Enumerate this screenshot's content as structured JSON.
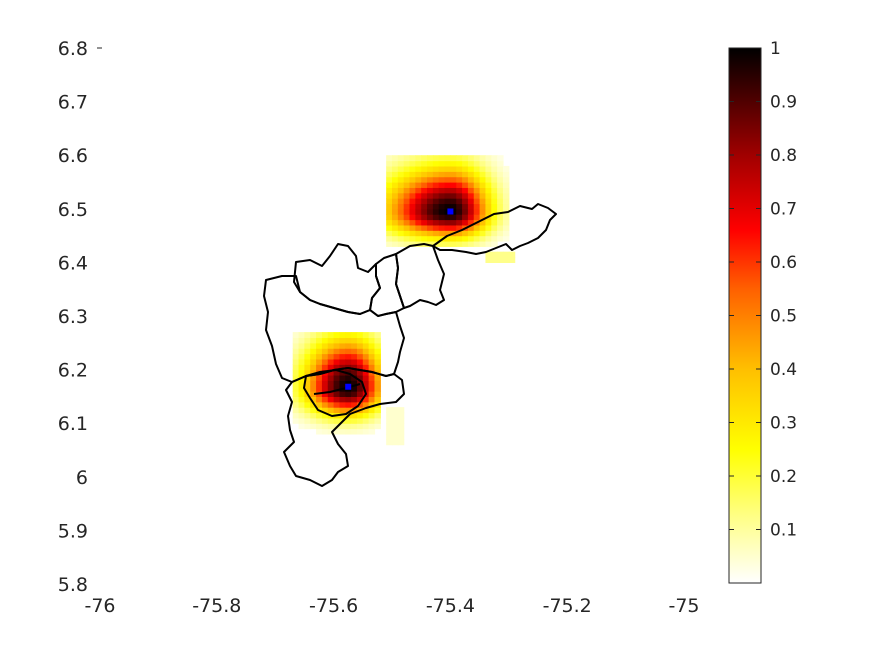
{
  "chart_data": {
    "type": "heatmap",
    "title": "",
    "xlabel": "",
    "ylabel": "",
    "xlim": [
      -76,
      -75
    ],
    "ylim": [
      5.8,
      6.8
    ],
    "xticks": [
      -76,
      -75.8,
      -75.6,
      -75.4,
      -75.2,
      -75
    ],
    "xtick_labels": [
      "-76",
      "-75.8",
      "-75.6",
      "-75.4",
      "-75.2",
      "-75"
    ],
    "yticks": [
      5.8,
      5.9,
      6.0,
      6.1,
      6.2,
      6.3,
      6.4,
      6.5,
      6.6,
      6.7,
      6.8
    ],
    "ytick_labels": [
      "5.8",
      "5.9",
      "6",
      "6.1",
      "6.2",
      "6.3",
      "6.4",
      "6.5",
      "6.6",
      "6.7",
      "6.8"
    ],
    "grid": false,
    "colormap": "hot (reversed)",
    "colorbar": {
      "position": "right",
      "range": [
        0,
        1
      ],
      "ticks": [
        0.1,
        0.2,
        0.3,
        0.4,
        0.5,
        0.6,
        0.7,
        0.8,
        0.9,
        1
      ],
      "tick_labels": [
        "0.1",
        "0.2",
        "0.3",
        "0.4",
        "0.5",
        "0.6",
        "0.7",
        "0.8",
        "0.9",
        "1"
      ]
    },
    "hotspots": [
      {
        "lon": -75.4,
        "lat": 6.495,
        "peak": 1.0
      },
      {
        "lon": -75.575,
        "lat": 6.168,
        "peak": 1.0
      }
    ],
    "marker_color": "#0000ff",
    "boundary_color": "#000000"
  }
}
